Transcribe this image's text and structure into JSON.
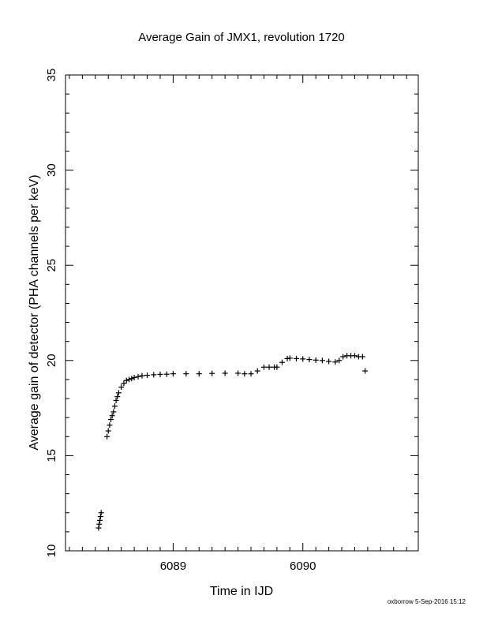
{
  "footer": {
    "stamp": "oxborrow  5-Sep-2016 15:12"
  },
  "chart_data": {
    "type": "scatter",
    "title": "Average Gain of JMX1, revolution 1720",
    "xlabel": "Time in IJD",
    "ylabel": "Average gain of detector (PHA channels per keV)",
    "xlim": [
      6088.17,
      6090.89
    ],
    "ylim": [
      10,
      35
    ],
    "xticks": [
      6089,
      6090
    ],
    "xtick_labels": [
      "6089",
      "6090"
    ],
    "yticks": [
      10,
      15,
      20,
      25,
      30,
      35
    ],
    "ytick_labels": [
      "10",
      "15",
      "20",
      "25",
      "30",
      "35"
    ],
    "grid": false,
    "marker": "+",
    "color": "#000000",
    "series": [
      {
        "x": [
          6088.425,
          6088.43,
          6088.435,
          6088.44,
          6088.445,
          6088.49,
          6088.5,
          6088.51,
          6088.52,
          6088.53,
          6088.54,
          6088.55,
          6088.56,
          6088.57,
          6088.58,
          6088.6,
          6088.62,
          6088.64,
          6088.66,
          6088.68,
          6088.7,
          6088.73,
          6088.76,
          6088.8,
          6088.85,
          6088.9,
          6088.95,
          6089.0,
          6089.1,
          6089.2,
          6089.3,
          6089.4,
          6089.5,
          6089.55,
          6089.6,
          6089.65,
          6089.7,
          6089.74,
          6089.78,
          6089.8,
          6089.84,
          6089.88,
          6089.9,
          6089.95,
          6090.0,
          6090.05,
          6090.1,
          6090.15,
          6090.2,
          6090.25,
          6090.28,
          6090.31,
          6090.34,
          6090.37,
          6090.4,
          6090.43,
          6090.46,
          6090.48
        ],
        "y": [
          11.2,
          11.4,
          11.6,
          11.8,
          12.0,
          16.0,
          16.3,
          16.6,
          16.9,
          17.1,
          17.3,
          17.6,
          17.9,
          18.1,
          18.3,
          18.6,
          18.8,
          18.95,
          19.0,
          19.05,
          19.1,
          19.15,
          19.2,
          19.22,
          19.25,
          19.27,
          19.28,
          19.3,
          19.3,
          19.3,
          19.32,
          19.33,
          19.33,
          19.3,
          19.3,
          19.45,
          19.65,
          19.65,
          19.65,
          19.65,
          19.9,
          20.1,
          20.12,
          20.1,
          20.08,
          20.05,
          20.02,
          20.0,
          19.95,
          19.92,
          20.0,
          20.2,
          20.25,
          20.25,
          20.25,
          20.2,
          20.2,
          19.45
        ]
      }
    ]
  }
}
